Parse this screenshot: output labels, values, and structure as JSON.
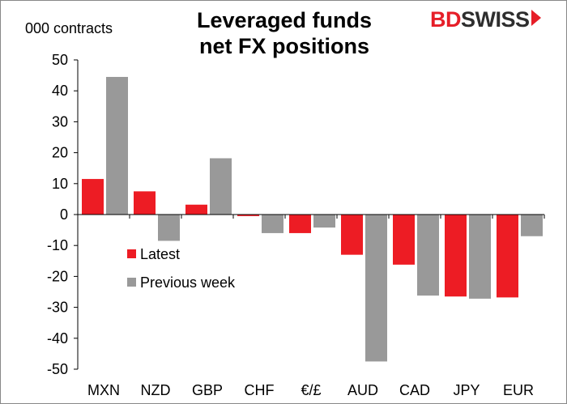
{
  "chart_data": {
    "type": "bar",
    "title": "Leveraged funds net FX positions",
    "title_lines": [
      "Leveraged funds",
      "net FX positions"
    ],
    "ylabel": "000 contracts",
    "xlabel": "",
    "categories": [
      "MXN",
      "NZD",
      "GBP",
      "CHF",
      "€/£",
      "AUD",
      "CAD",
      "JPY",
      "EUR"
    ],
    "series": [
      {
        "name": "Latest",
        "color": "#ed1c24",
        "values": [
          11.5,
          7.5,
          3.2,
          -0.5,
          -6,
          -13,
          -16.2,
          -26.5,
          -26.8
        ]
      },
      {
        "name": "Previous week",
        "color": "#999999",
        "values": [
          44.5,
          -8.5,
          18.2,
          -6,
          -4.2,
          -47.5,
          -26.2,
          -27.2,
          -7
        ]
      }
    ],
    "ylim": [
      -50,
      50
    ],
    "yticks": [
      50,
      40,
      30,
      20,
      10,
      0,
      -10,
      -20,
      -30,
      -40,
      -50
    ],
    "legend_position": "center-left",
    "grid": false
  },
  "brand": {
    "part1": "BD",
    "part2": "SWISS",
    "accent": "#e61e28"
  }
}
